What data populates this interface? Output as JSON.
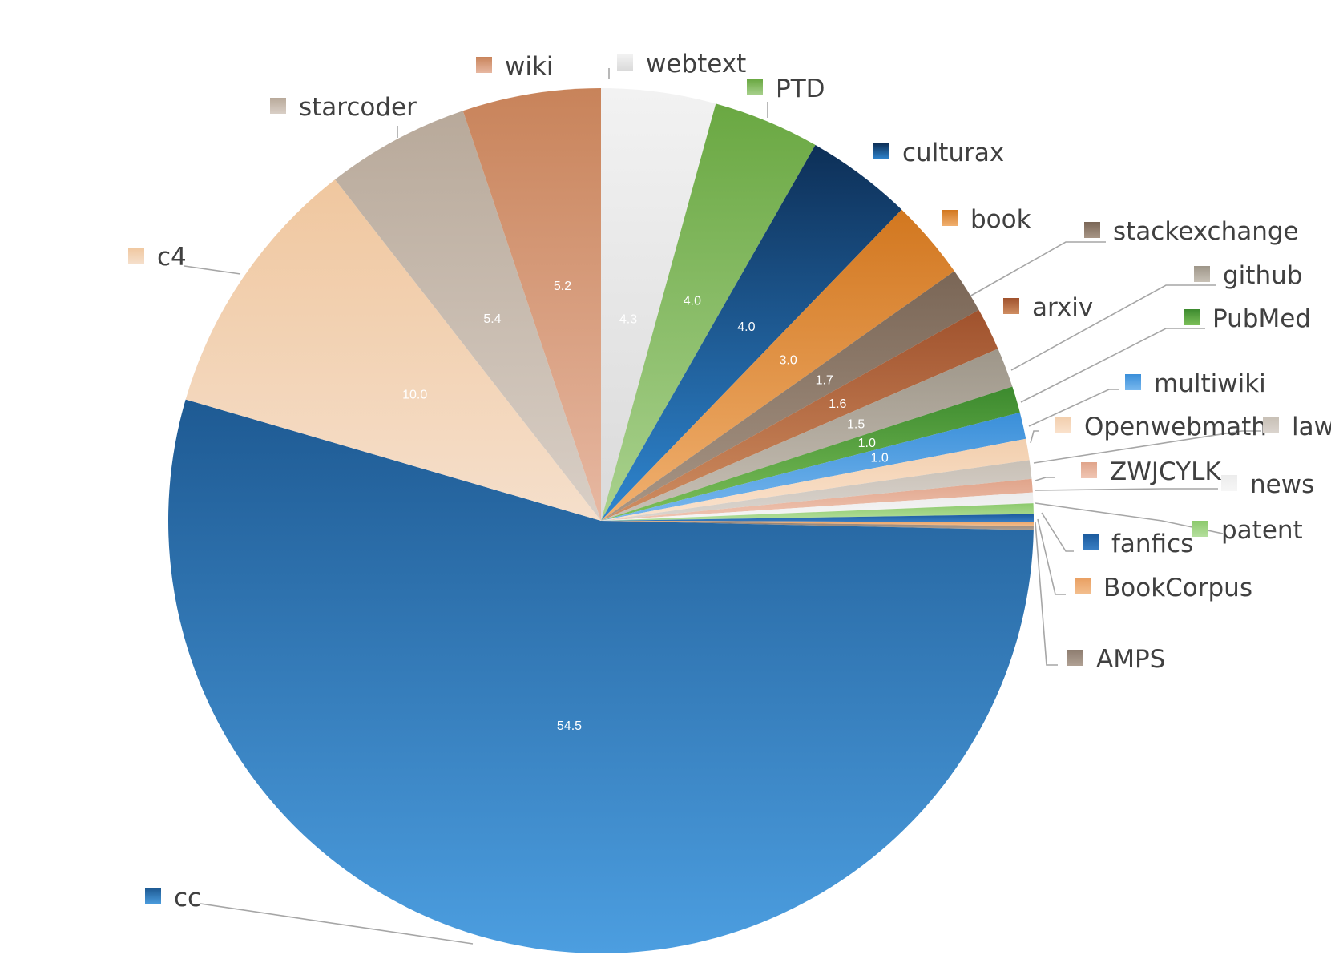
{
  "chart_data": {
    "type": "pie",
    "title": "",
    "start_angle_deg": 90,
    "direction": "clockwise",
    "slices": [
      {
        "label": "webtext",
        "value": 4.3,
        "value_label": "4.3",
        "color_top": "#f2f2f2",
        "color_bottom": "#dadada",
        "text_color": "#ffffff"
      },
      {
        "label": "PTD",
        "value": 4.0,
        "value_label": "4.0",
        "color_top": "#6aa842",
        "color_bottom": "#a9d18e",
        "text_color": "#ffffff"
      },
      {
        "label": "culturax",
        "value": 4.0,
        "value_label": "4.0",
        "color_top": "#0d2f57",
        "color_bottom": "#2f86d0",
        "text_color": "#ffffff"
      },
      {
        "label": "book",
        "value": 3.0,
        "value_label": "3.0",
        "color_top": "#d2771f",
        "color_bottom": "#f0b070",
        "text_color": "#ffffff"
      },
      {
        "label": "stackexchange",
        "value": 1.7,
        "value_label": "1.7",
        "color_top": "#7a6656",
        "color_bottom": "#a89686",
        "text_color": "#ffffff"
      },
      {
        "label": "arxiv",
        "value": 1.6,
        "value_label": "1.6",
        "color_top": "#a0522d",
        "color_bottom": "#cf8e62",
        "text_color": "#ffffff"
      },
      {
        "label": "github",
        "value": 1.5,
        "value_label": "1.5",
        "color_top": "#9e9689",
        "color_bottom": "#c8c1b6",
        "text_color": "#ffffff"
      },
      {
        "label": "PubMed",
        "value": 1.0,
        "value_label": "1.0",
        "color_top": "#3c8a2e",
        "color_bottom": "#7dc05a",
        "text_color": "#ffffff"
      },
      {
        "label": "multiwiki",
        "value": 1.0,
        "value_label": "1.0",
        "color_top": "#3a8fd9",
        "color_bottom": "#79b8ee",
        "text_color": "#ffffff"
      },
      {
        "label": "Openwebmath",
        "value": 0.8,
        "value_label": "",
        "color_top": "#f2cfae",
        "color_bottom": "#fae2cd",
        "text_color": "#ffffff"
      },
      {
        "label": "law",
        "value": 0.7,
        "value_label": "",
        "color_top": "#c8c0b6",
        "color_bottom": "#dbd5cf",
        "text_color": "#ffffff"
      },
      {
        "label": "ZWJCYLK",
        "value": 0.5,
        "value_label": "",
        "color_top": "#e0a48a",
        "color_bottom": "#f0c6b4",
        "text_color": "#ffffff"
      },
      {
        "label": "news",
        "value": 0.4,
        "value_label": "",
        "color_top": "#ececec",
        "color_bottom": "#f6f6f6",
        "text_color": "#ffffff"
      },
      {
        "label": "patent",
        "value": 0.4,
        "value_label": "",
        "color_top": "#8cc96c",
        "color_bottom": "#b5df9e",
        "text_color": "#ffffff"
      },
      {
        "label": "fanfics",
        "value": 0.3,
        "value_label": "",
        "color_top": "#1c5b9e",
        "color_bottom": "#3a7fc4",
        "text_color": "#ffffff"
      },
      {
        "label": "BookCorpus",
        "value": 0.15,
        "value_label": "",
        "color_top": "#e9a063",
        "color_bottom": "#f3bf8f",
        "text_color": "#ffffff"
      },
      {
        "label": "AMPS",
        "value": 0.15,
        "value_label": "",
        "color_top": "#8e7d70",
        "color_bottom": "#b0a194",
        "text_color": "#ffffff"
      },
      {
        "label": "cc",
        "value": 54.5,
        "value_label": "54.5",
        "color_top": "#1e5a93",
        "color_bottom": "#4c9ee0",
        "text_color": "#ffffff"
      },
      {
        "label": "c4",
        "value": 10.0,
        "value_label": "10.0",
        "color_top": "#f0c79f",
        "color_bottom": "#f5dfcb",
        "text_color": "#ffffff"
      },
      {
        "label": "starcoder",
        "value": 5.4,
        "value_label": "5.4",
        "color_top": "#b8a99a",
        "color_bottom": "#d9cfc6",
        "text_color": "#ffffff"
      },
      {
        "label": "wiki",
        "value": 5.2,
        "value_label": "5.2",
        "color_top": "#c8835a",
        "color_bottom": "#e7b8a2",
        "text_color": "#ffffff"
      }
    ],
    "legend": "labels placed outside the pie next to each slice, each with a color swatch"
  }
}
